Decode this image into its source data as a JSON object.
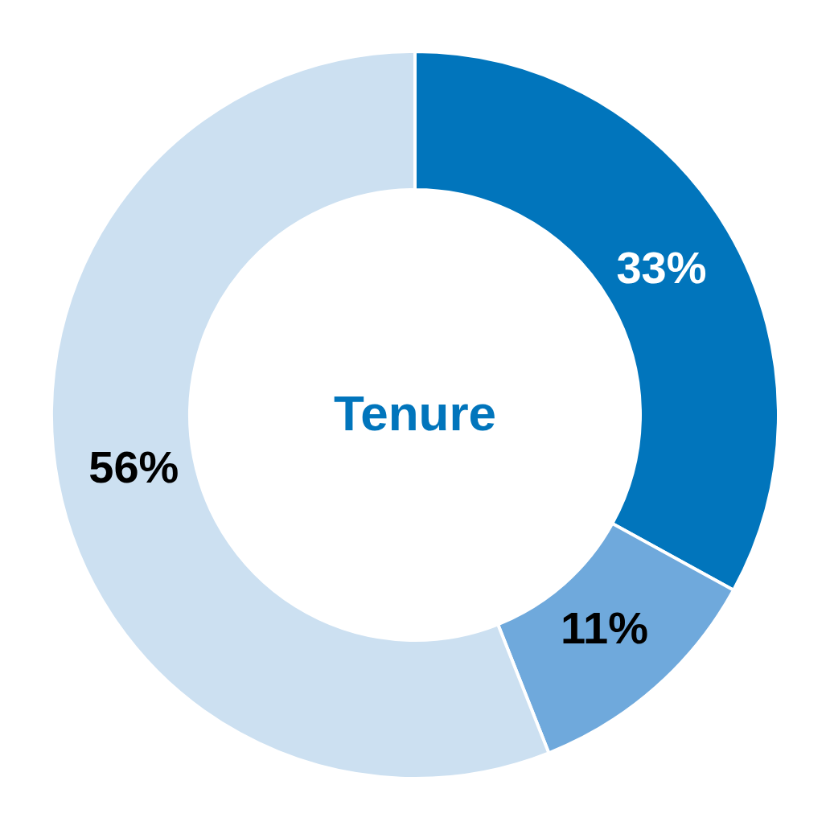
{
  "chart_data": {
    "type": "donut",
    "title": "Tenure",
    "categories": [
      null,
      null,
      null
    ],
    "values": [
      33,
      11,
      56
    ],
    "colors": [
      "#0175bc",
      "#6fa9dc",
      "#cce0f1"
    ],
    "value_labels": [
      "33%",
      "11%",
      "56%"
    ]
  }
}
